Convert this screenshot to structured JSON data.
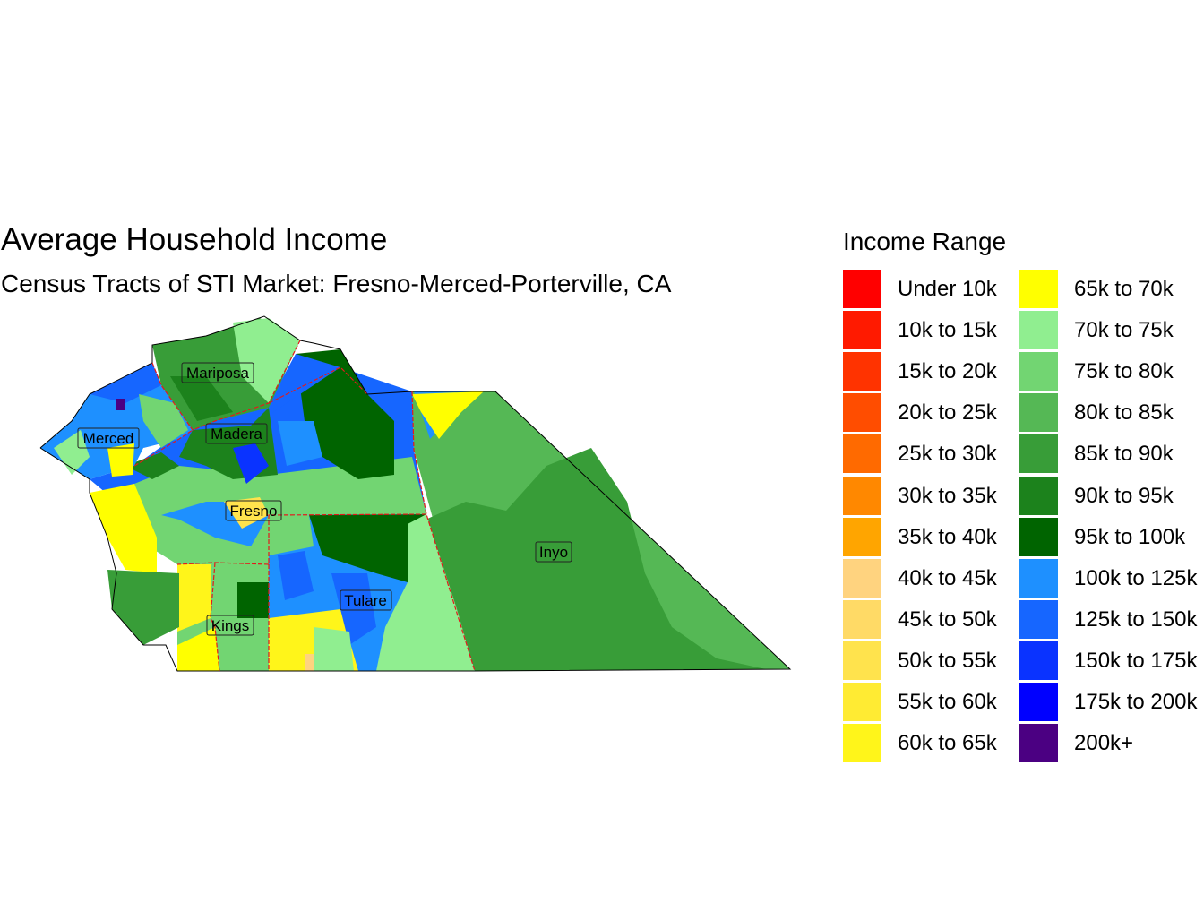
{
  "title": "Average Household Income",
  "subtitle": "Census Tracts of STI Market: Fresno-Merced-Porterville, CA",
  "legend": {
    "title": "Income Range",
    "items": [
      {
        "label": "Under 10k",
        "color": "#FF0000"
      },
      {
        "label": "10k to 15k",
        "color": "#FF1A00"
      },
      {
        "label": "15k to 20k",
        "color": "#FF3300"
      },
      {
        "label": "20k to 25k",
        "color": "#FF4D00"
      },
      {
        "label": "25k to 30k",
        "color": "#FF6A00"
      },
      {
        "label": "30k to 35k",
        "color": "#FF8800"
      },
      {
        "label": "35k to 40k",
        "color": "#FFA500"
      },
      {
        "label": "40k to 45k",
        "color": "#FFD37F"
      },
      {
        "label": "45k to 50k",
        "color": "#FFDA66"
      },
      {
        "label": "50k to 55k",
        "color": "#FFE34D"
      },
      {
        "label": "55k to 60k",
        "color": "#FFEB33"
      },
      {
        "label": "60k to 65k",
        "color": "#FFF51A"
      },
      {
        "label": "65k to 70k",
        "color": "#FFFF00"
      },
      {
        "label": "70k to 75k",
        "color": "#90EE90"
      },
      {
        "label": "75k to 80k",
        "color": "#72D572"
      },
      {
        "label": "80k to 85k",
        "color": "#55B855"
      },
      {
        "label": "85k to 90k",
        "color": "#389D38"
      },
      {
        "label": "90k to 95k",
        "color": "#1C821C"
      },
      {
        "label": "95k to 100k",
        "color": "#006400"
      },
      {
        "label": "100k to 125k",
        "color": "#1E90FF"
      },
      {
        "label": "125k to 150k",
        "color": "#1666FF"
      },
      {
        "label": "150k to 175k",
        "color": "#0A33FF"
      },
      {
        "label": "175k to 200k",
        "color": "#0000FF"
      },
      {
        "label": "200k+",
        "color": "#4B0082"
      }
    ]
  },
  "counties": [
    "Mariposa",
    "Madera",
    "Merced",
    "Fresno",
    "Kings",
    "Tulare",
    "Inyo"
  ],
  "colors": {
    "county_border": "#E31A1C",
    "outline": "#000000"
  }
}
